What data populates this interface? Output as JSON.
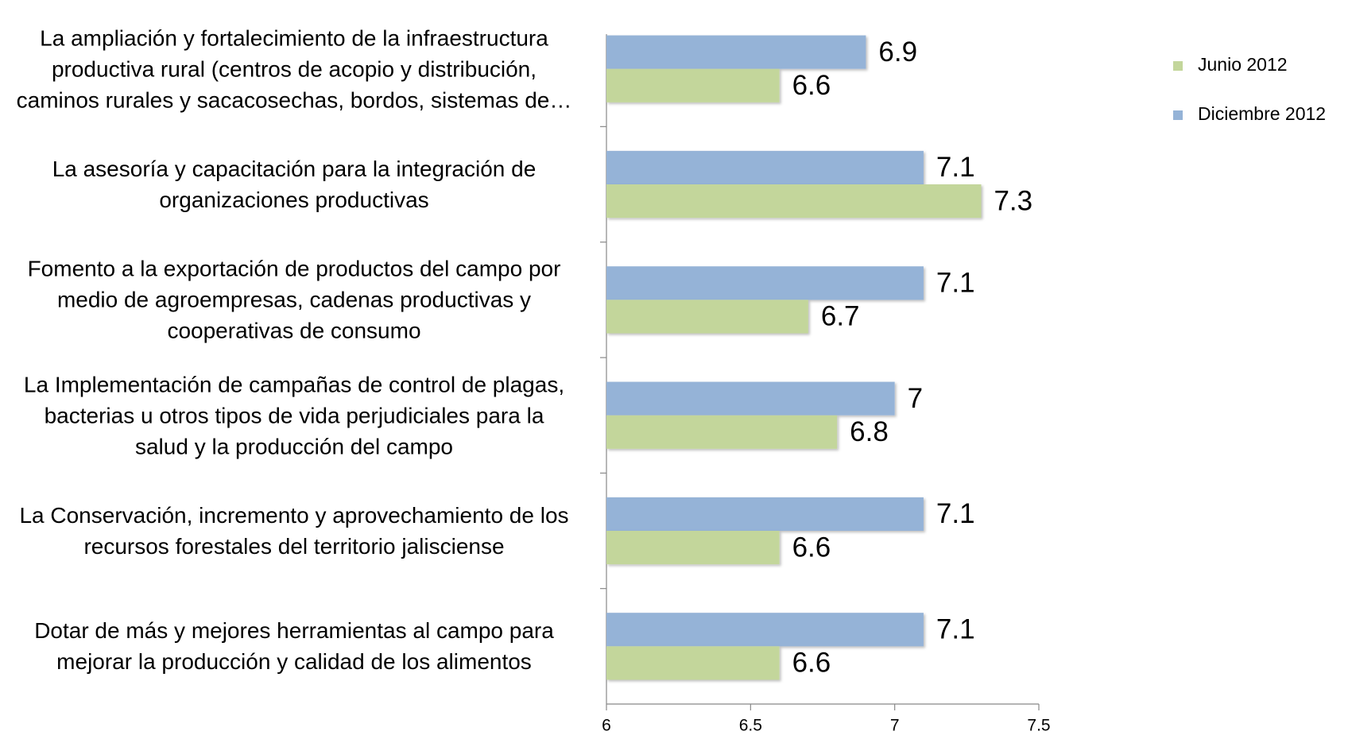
{
  "chart_data": {
    "type": "bar",
    "orientation": "horizontal",
    "categories": [
      "La ampliación y fortalecimiento de la infraestructura\nproductiva rural (centros de acopio y distribución,\ncaminos  rurales y sacacosechas, bordos, sistemas de…",
      "La asesoría y capacitación para la integración de\norganizaciones productivas",
      "Fomento a la exportación de productos del campo por\nmedio de agroempresas, cadenas productivas y\ncooperativas de consumo",
      "La Implementación de campañas de control de plagas,\nbacterias u otros tipos de vida perjudiciales para la\nsalud y la producción del campo",
      "La Conservación, incremento y aprovechamiento de los\nrecursos forestales del territorio jalisciense",
      "Dotar de más y mejores herramientas al campo para\nmejorar la producción y calidad de los alimentos"
    ],
    "series": [
      {
        "name": "Diciembre 2012",
        "color": "#95b3d7",
        "values": [
          6.9,
          7.1,
          7.1,
          7,
          7.1,
          7.1
        ]
      },
      {
        "name": "Junio 2012",
        "color": "#c3d69b",
        "values": [
          6.6,
          7.3,
          6.7,
          6.8,
          6.6,
          6.6
        ]
      }
    ],
    "legend_order": [
      1,
      0
    ],
    "legend": "right",
    "xlim": [
      6,
      7.5
    ],
    "xticks": [
      6,
      6.5,
      7,
      7.5
    ],
    "grid": false
  }
}
